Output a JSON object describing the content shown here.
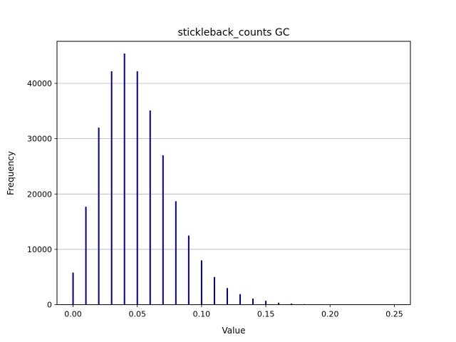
{
  "chart_data": {
    "type": "bar",
    "title": "stickleback_counts GC",
    "xlabel": "Value",
    "ylabel": "Frequency",
    "xlim": [
      -0.0125,
      0.2625
    ],
    "ylim": [
      0,
      47600
    ],
    "grid": "y",
    "bar_color": "#00008b",
    "x_ticks": [
      "0.00",
      "0.05",
      "0.10",
      "0.15",
      "0.20",
      "0.25"
    ],
    "y_ticks": [
      "0",
      "10000",
      "20000",
      "30000",
      "40000"
    ],
    "x": [
      0.0,
      0.01,
      0.02,
      0.03,
      0.04,
      0.05,
      0.06,
      0.07,
      0.08,
      0.09,
      0.1,
      0.11,
      0.12,
      0.13,
      0.14,
      0.15,
      0.16,
      0.17,
      0.18,
      0.19,
      0.2
    ],
    "values": [
      5800,
      17700,
      32000,
      42200,
      45400,
      42200,
      35100,
      27000,
      18700,
      12500,
      8000,
      5000,
      3000,
      1900,
      1100,
      700,
      350,
      200,
      100,
      40,
      15
    ]
  }
}
